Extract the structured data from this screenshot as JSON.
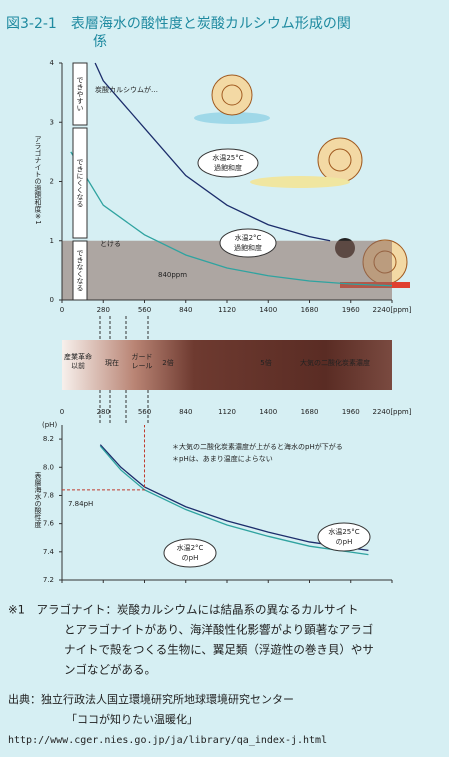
{
  "title": "図3-2-1　表層海水の酸性度と炭酸カルシウム形成の関係",
  "chart_data": [
    {
      "type": "line",
      "y_label": "アラゴナイトの過飽和度※1",
      "xlim": [
        0,
        2240
      ],
      "xticks": [
        0,
        280,
        560,
        840,
        1120,
        1400,
        1680,
        1960,
        {
          "value": 2240,
          "label": "2240[ppm]"
        }
      ],
      "ylim": [
        0,
        4
      ],
      "yticks": [
        0,
        1,
        2,
        3,
        4
      ],
      "dissolve_below": 1,
      "zones": [
        "できやすい",
        "できにくくなる",
        "できなくなる"
      ],
      "annotations": [
        "炭酸カルシウムが…",
        "とける",
        "840ppm"
      ],
      "series": [
        {
          "name": "水温25°C 過飽和度",
          "color": "#1c2d6b",
          "x": [
            225,
            280,
            560,
            840,
            1120,
            1400,
            1680,
            1820
          ],
          "values": [
            4.0,
            3.7,
            2.9,
            2.1,
            1.6,
            1.27,
            1.07,
            1.0
          ]
        },
        {
          "name": "水温2°C 過飽和度",
          "color": "#2fa3a0",
          "x": [
            60,
            280,
            560,
            840,
            1120,
            1400,
            1680,
            1960,
            2240
          ],
          "values": [
            2.5,
            1.6,
            1.1,
            0.76,
            0.54,
            0.41,
            0.32,
            0.27,
            0.24
          ]
        }
      ]
    },
    {
      "type": "line",
      "y_label": "表層海水の酸性度",
      "y_unit": "(pH)",
      "xlim": [
        0,
        2240
      ],
      "xticks": [
        0,
        280,
        560,
        840,
        1120,
        1400,
        1680,
        1960,
        {
          "value": 2240,
          "label": "2240[ppm]"
        }
      ],
      "ylim": [
        7.2,
        8.3
      ],
      "yticks": [
        {
          "value": 7.2,
          "label": "7.2"
        },
        7.4,
        7.6,
        7.8,
        {
          "value": 8,
          "label": "8.0"
        },
        8.2
      ],
      "marker": {
        "x": 560,
        "value": 7.84,
        "label": "7.84pH"
      },
      "notes": [
        "＊大気の二酸化炭素濃度が上がると海水のpHが下がる",
        "＊pHは、あまり温度によらない"
      ],
      "series": [
        {
          "name": "水温25°C のpH",
          "color": "#1c2d6b",
          "x": [
            260,
            400,
            560,
            840,
            1120,
            1400,
            1680,
            2080
          ],
          "values": [
            8.16,
            8.0,
            7.86,
            7.72,
            7.62,
            7.54,
            7.47,
            7.41
          ]
        },
        {
          "name": "水温2°C のpH",
          "color": "#2fa3a0",
          "x": [
            260,
            400,
            560,
            840,
            1120,
            1400,
            1680,
            2080
          ],
          "values": [
            8.15,
            7.98,
            7.84,
            7.7,
            7.59,
            7.51,
            7.44,
            7.38
          ]
        }
      ]
    }
  ],
  "band": {
    "labels": [
      "産業革命 以前",
      "現在",
      "ガード レール",
      "2倍",
      "5倍",
      "大気の二酸化炭素濃度"
    ]
  },
  "footnote": [
    "※1　アラゴナイト：炭酸カルシウムには結晶系の異なるカルサイト",
    "とアラゴナイトがあり、海洋酸性化影響がより顕著なアラゴ",
    "ナイトで殻をつくる生物に、翼足類（浮遊性の巻き貝）やサ",
    "ンゴなどがある。"
  ],
  "source": [
    "出典：独立行政法人国立環境研究所地球環境研究センター",
    "「ココが知りたい温暖化」",
    "http://www.cger.nies.go.jp/ja/library/qa_index-j.html"
  ]
}
